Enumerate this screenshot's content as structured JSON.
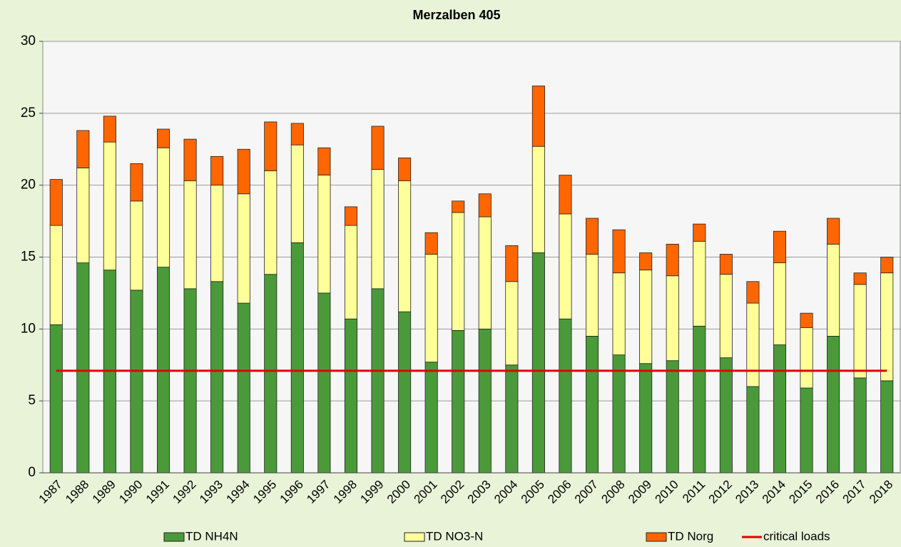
{
  "chart_data": {
    "type": "stacked_bar_line",
    "title": "Merzalben 405",
    "categories": [
      "1987",
      "1988",
      "1989",
      "1990",
      "1991",
      "1992",
      "1993",
      "1994",
      "1995",
      "1996",
      "1997",
      "1998",
      "1999",
      "2000",
      "2001",
      "2002",
      "2003",
      "2004",
      "2005",
      "2006",
      "2007",
      "2008",
      "2009",
      "2010",
      "2011",
      "2012",
      "2013",
      "2014",
      "2015",
      "2016",
      "2017",
      "2018"
    ],
    "series": [
      {
        "name": "TD NH4N",
        "color": "#4a9a3a",
        "type": "bar",
        "values": [
          10.3,
          14.6,
          14.1,
          12.7,
          14.3,
          12.8,
          13.3,
          11.8,
          13.8,
          16.0,
          12.5,
          10.7,
          12.8,
          11.2,
          7.7,
          9.9,
          10.0,
          7.5,
          15.3,
          10.7,
          9.5,
          8.2,
          7.6,
          7.8,
          10.2,
          8.0,
          6.0,
          8.9,
          5.9,
          9.5,
          6.6,
          6.4
        ]
      },
      {
        "name": "TD NO3-N",
        "color": "#ffff99",
        "type": "bar",
        "values": [
          6.9,
          6.6,
          8.9,
          6.2,
          8.3,
          7.5,
          6.7,
          7.6,
          7.2,
          6.8,
          8.2,
          6.5,
          8.3,
          9.1,
          7.5,
          8.2,
          7.8,
          5.8,
          7.4,
          7.3,
          5.7,
          5.7,
          6.5,
          5.9,
          5.9,
          5.8,
          5.8,
          5.7,
          4.2,
          6.4,
          6.5,
          7.5
        ]
      },
      {
        "name": "TD Norg",
        "color": "#ff6600",
        "type": "bar",
        "values": [
          3.2,
          2.6,
          1.8,
          2.6,
          1.3,
          2.9,
          2.0,
          3.1,
          3.4,
          1.5,
          1.9,
          1.3,
          3.0,
          1.6,
          1.5,
          0.8,
          1.6,
          2.5,
          4.2,
          2.7,
          2.5,
          3.0,
          1.2,
          2.2,
          1.2,
          1.4,
          1.5,
          2.2,
          1.0,
          1.8,
          0.8,
          1.1
        ]
      },
      {
        "name": "critical loads",
        "color": "#e00000",
        "type": "line",
        "values": [
          7.1,
          7.1,
          7.1,
          7.1,
          7.1,
          7.1,
          7.1,
          7.1,
          7.1,
          7.1,
          7.1,
          7.1,
          7.1,
          7.1,
          7.1,
          7.1,
          7.1,
          7.1,
          7.1,
          7.1,
          7.1,
          7.1,
          7.1,
          7.1,
          7.1,
          7.1,
          7.1,
          7.1,
          7.1,
          7.1,
          7.1,
          7.1
        ]
      }
    ],
    "ylim": [
      0,
      30
    ],
    "yticks": [
      0,
      5,
      10,
      15,
      20,
      25,
      30
    ],
    "grid": true,
    "legend": "bottom"
  }
}
